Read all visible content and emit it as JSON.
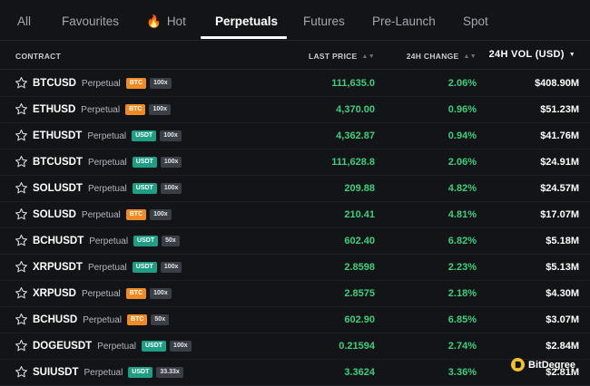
{
  "tabs": [
    {
      "label": "All"
    },
    {
      "label": "Favourites"
    },
    {
      "label": "Hot",
      "icon": "flame-icon"
    },
    {
      "label": "Perpetuals",
      "active": true
    },
    {
      "label": "Futures"
    },
    {
      "label": "Pre-Launch"
    },
    {
      "label": "Spot"
    }
  ],
  "columns": {
    "contract": "CONTRACT",
    "last_price": "LAST PRICE",
    "change_24h": "24H CHANGE",
    "vol_24h": "24H VOL (USD)",
    "sorted_by": "24H VOL (USD)",
    "sort_direction": "descending"
  },
  "rows": [
    {
      "symbol": "BTCUSD",
      "type": "Perpetual",
      "settle": "BTC",
      "leverage": "100x",
      "price": "111,635.0",
      "change": "2.06%",
      "volume": "$408.90M"
    },
    {
      "symbol": "ETHUSD",
      "type": "Perpetual",
      "settle": "BTC",
      "leverage": "100x",
      "price": "4,370.00",
      "change": "0.96%",
      "volume": "$51.23M"
    },
    {
      "symbol": "ETHUSDT",
      "type": "Perpetual",
      "settle": "USDT",
      "leverage": "100x",
      "price": "4,362.87",
      "change": "0.94%",
      "volume": "$41.76M"
    },
    {
      "symbol": "BTCUSDT",
      "type": "Perpetual",
      "settle": "USDT",
      "leverage": "100x",
      "price": "111,628.8",
      "change": "2.06%",
      "volume": "$24.91M"
    },
    {
      "symbol": "SOLUSDT",
      "type": "Perpetual",
      "settle": "USDT",
      "leverage": "100x",
      "price": "209.88",
      "change": "4.82%",
      "volume": "$24.57M"
    },
    {
      "symbol": "SOLUSD",
      "type": "Perpetual",
      "settle": "BTC",
      "leverage": "100x",
      "price": "210.41",
      "change": "4.81%",
      "volume": "$17.07M"
    },
    {
      "symbol": "BCHUSDT",
      "type": "Perpetual",
      "settle": "USDT",
      "leverage": "50x",
      "price": "602.40",
      "change": "6.82%",
      "volume": "$5.18M"
    },
    {
      "symbol": "XRPUSDT",
      "type": "Perpetual",
      "settle": "USDT",
      "leverage": "100x",
      "price": "2.8598",
      "change": "2.23%",
      "volume": "$5.13M"
    },
    {
      "symbol": "XRPUSD",
      "type": "Perpetual",
      "settle": "BTC",
      "leverage": "100x",
      "price": "2.8575",
      "change": "2.18%",
      "volume": "$4.30M"
    },
    {
      "symbol": "BCHUSD",
      "type": "Perpetual",
      "settle": "BTC",
      "leverage": "50x",
      "price": "602.90",
      "change": "6.85%",
      "volume": "$3.07M"
    },
    {
      "symbol": "DOGEUSDT",
      "type": "Perpetual",
      "settle": "USDT",
      "leverage": "100x",
      "price": "0.21594",
      "change": "2.74%",
      "volume": "$2.84M"
    },
    {
      "symbol": "SUIUSDT",
      "type": "Perpetual",
      "settle": "USDT",
      "leverage": "33.33x",
      "price": "3.3624",
      "change": "3.36%",
      "volume": "$2.81M"
    }
  ],
  "watermark": {
    "text": "BitDegree"
  },
  "colors": {
    "background": "#121418",
    "positive": "#3fce7d",
    "btc_badge": "#f08a24",
    "usdt_badge": "#1f9e86",
    "leverage_badge": "#3a3e47",
    "hot_icon": "#f2611f"
  }
}
